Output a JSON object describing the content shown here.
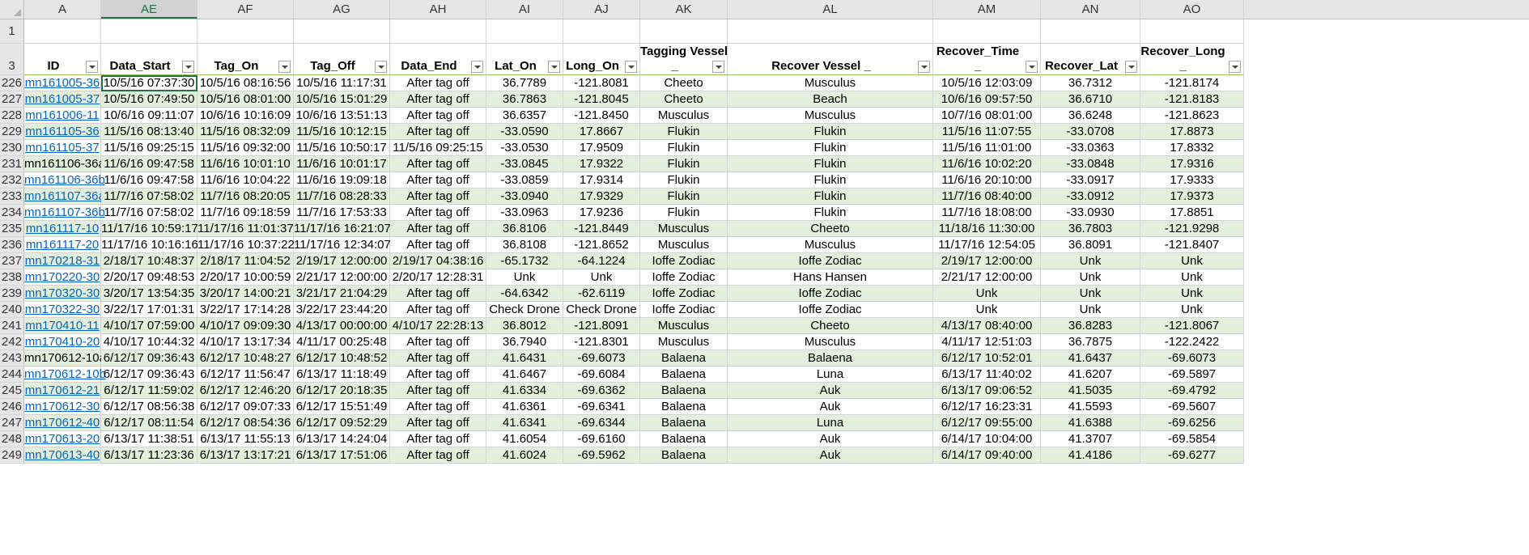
{
  "columns": [
    "A",
    "AE",
    "AF",
    "AG",
    "AH",
    "AI",
    "AJ",
    "AK",
    "AL",
    "AM",
    "AN",
    "AO"
  ],
  "active_column": "AE",
  "blank_row_number": "1",
  "header_row": {
    "row_number": "3",
    "cells": [
      {
        "line1": "",
        "line2": "ID"
      },
      {
        "line1": "",
        "line2": "Data_Start"
      },
      {
        "line1": "",
        "line2": "Tag_On"
      },
      {
        "line1": "",
        "line2": "Tag_Off"
      },
      {
        "line1": "",
        "line2": "Data_End"
      },
      {
        "line1": "",
        "line2": "Lat_On"
      },
      {
        "line1": "",
        "line2": "Long_On"
      },
      {
        "line1": "Tagging Vessel",
        "line2": "_"
      },
      {
        "line1": "",
        "line2": "Recover Vessel   _"
      },
      {
        "line1": "Recover_Time",
        "line2": "_"
      },
      {
        "line1": "",
        "line2": "Recover_Lat"
      },
      {
        "line1": "Recover_Long",
        "line2": "_"
      }
    ]
  },
  "rows": [
    {
      "num": "226",
      "link": true,
      "cells": [
        "mn161005-36",
        "10/5/16 07:37:30",
        "10/5/16 08:16:56",
        "10/5/16 11:17:31",
        "After tag off",
        "36.7789",
        "-121.8081",
        "Cheeto",
        "Musculus",
        "10/5/16 12:03:09",
        "36.7312",
        "-121.8174"
      ]
    },
    {
      "num": "227",
      "link": true,
      "cells": [
        "mn161005-37",
        "10/5/16 07:49:50",
        "10/5/16 08:01:00",
        "10/5/16 15:01:29",
        "After tag off",
        "36.7863",
        "-121.8045",
        "Cheeto",
        "Beach",
        "10/6/16 09:57:50",
        "36.6710",
        "-121.8183"
      ]
    },
    {
      "num": "228",
      "link": true,
      "cells": [
        "mn161006-11",
        "10/6/16 09:11:07",
        "10/6/16 10:16:09",
        "10/6/16 13:51:13",
        "After tag off",
        "36.6357",
        "-121.8450",
        "Musculus",
        "Musculus",
        "10/7/16 08:01:00",
        "36.6248",
        "-121.8623"
      ]
    },
    {
      "num": "229",
      "link": true,
      "cells": [
        "mn161105-36",
        "11/5/16 08:13:40",
        "11/5/16 08:32:09",
        "11/5/16 10:12:15",
        "After tag off",
        "-33.0590",
        "17.8667",
        "Flukin",
        "Flukin",
        "11/5/16 11:07:55",
        "-33.0708",
        "17.8873"
      ]
    },
    {
      "num": "230",
      "link": true,
      "cells": [
        "mn161105-37",
        "11/5/16 09:25:15",
        "11/5/16 09:32:00",
        "11/5/16 10:50:17",
        "11/5/16 09:25:15",
        "-33.0530",
        "17.9509",
        "Flukin",
        "Flukin",
        "11/5/16 11:01:00",
        "-33.0363",
        "17.8332"
      ]
    },
    {
      "num": "231",
      "link": false,
      "cells": [
        "mn161106-36a",
        "11/6/16 09:47:58",
        "11/6/16 10:01:10",
        "11/6/16 10:01:17",
        "After tag off",
        "-33.0845",
        "17.9322",
        "Flukin",
        "Flukin",
        "11/6/16 10:02:20",
        "-33.0848",
        "17.9316"
      ]
    },
    {
      "num": "232",
      "link": true,
      "cells": [
        "mn161106-36b",
        "11/6/16 09:47:58",
        "11/6/16 10:04:22",
        "11/6/16 19:09:18",
        "After tag off",
        "-33.0859",
        "17.9314",
        "Flukin",
        "Flukin",
        "11/6/16 20:10:00",
        "-33.0917",
        "17.9333"
      ]
    },
    {
      "num": "233",
      "link": true,
      "cells": [
        "mn161107-36a",
        "11/7/16 07:58:02",
        "11/7/16 08:20:05",
        "11/7/16 08:28:33",
        "After tag off",
        "-33.0940",
        "17.9329",
        "Flukin",
        "Flukin",
        "11/7/16 08:40:00",
        "-33.0912",
        "17.9373"
      ]
    },
    {
      "num": "234",
      "link": true,
      "cells": [
        "mn161107-36b",
        "11/7/16 07:58:02",
        "11/7/16 09:18:59",
        "11/7/16 17:53:33",
        "After tag off",
        "-33.0963",
        "17.9236",
        "Flukin",
        "Flukin",
        "11/7/16 18:08:00",
        "-33.0930",
        "17.8851"
      ]
    },
    {
      "num": "235",
      "link": true,
      "cells": [
        "mn161117-10",
        "11/17/16 10:59:17",
        "11/17/16 11:01:37",
        "11/17/16 16:21:07",
        "After tag off",
        "36.8106",
        "-121.8449",
        "Musculus",
        "Cheeto",
        "11/18/16 11:30:00",
        "36.7803",
        "-121.9298"
      ]
    },
    {
      "num": "236",
      "link": true,
      "cells": [
        "mn161117-20",
        "11/17/16 10:16:16",
        "11/17/16 10:37:22",
        "11/17/16 12:34:07",
        "After tag off",
        "36.8108",
        "-121.8652",
        "Musculus",
        "Musculus",
        "11/17/16 12:54:05",
        "36.8091",
        "-121.8407"
      ]
    },
    {
      "num": "237",
      "link": true,
      "cells": [
        "mn170218-31",
        "2/18/17 10:48:37",
        "2/18/17 11:04:52",
        "2/19/17 12:00:00",
        "2/19/17 04:38:16",
        "-65.1732",
        "-64.1224",
        "Ioffe Zodiac",
        "Ioffe Zodiac",
        "2/19/17 12:00:00",
        "Unk",
        "Unk"
      ]
    },
    {
      "num": "238",
      "link": true,
      "cells": [
        "mn170220-30",
        "2/20/17 09:48:53",
        "2/20/17 10:00:59",
        "2/21/17 12:00:00",
        "2/20/17 12:28:31",
        "Unk",
        "Unk",
        "Ioffe Zodiac",
        "Hans Hansen",
        "2/21/17 12:00:00",
        "Unk",
        "Unk"
      ]
    },
    {
      "num": "239",
      "link": true,
      "cells": [
        "mn170320-30",
        "3/20/17 13:54:35",
        "3/20/17 14:00:21",
        "3/21/17 21:04:29",
        "After tag off",
        "-64.6342",
        "-62.6119",
        "Ioffe Zodiac",
        "Ioffe Zodiac",
        "Unk",
        "Unk",
        "Unk"
      ]
    },
    {
      "num": "240",
      "link": true,
      "cells": [
        "mn170322-30",
        "3/22/17 17:01:31",
        "3/22/17 17:14:28",
        "3/22/17 23:44:20",
        "After tag off",
        "Check Drone",
        "Check Drone",
        "Ioffe Zodiac",
        "Ioffe Zodiac",
        "Unk",
        "Unk",
        "Unk"
      ]
    },
    {
      "num": "241",
      "link": true,
      "cells": [
        "mn170410-11",
        "4/10/17 07:59:00",
        "4/10/17 09:09:30",
        "4/13/17 00:00:00",
        "4/10/17 22:28:13",
        "36.8012",
        "-121.8091",
        "Musculus",
        "Cheeto",
        "4/13/17 08:40:00",
        "36.8283",
        "-121.8067"
      ]
    },
    {
      "num": "242",
      "link": true,
      "cells": [
        "mn170410-20",
        "4/10/17 10:44:32",
        "4/10/17 13:17:34",
        "4/11/17 00:25:48",
        "After tag off",
        "36.7940",
        "-121.8301",
        "Musculus",
        "Musculus",
        "4/11/17 12:51:03",
        "36.7875",
        "-122.2422"
      ]
    },
    {
      "num": "243",
      "link": false,
      "cells": [
        "mn170612-10a",
        "6/12/17 09:36:43",
        "6/12/17 10:48:27",
        "6/12/17 10:48:52",
        "After tag off",
        "41.6431",
        "-69.6073",
        "Balaena",
        "Balaena",
        "6/12/17 10:52:01",
        "41.6437",
        "-69.6073"
      ]
    },
    {
      "num": "244",
      "link": true,
      "cells": [
        "mn170612-10b",
        "6/12/17 09:36:43",
        "6/12/17 11:56:47",
        "6/13/17 11:18:49",
        "After tag off",
        "41.6467",
        "-69.6084",
        "Balaena",
        "Luna",
        "6/13/17 11:40:02",
        "41.6207",
        "-69.5897"
      ]
    },
    {
      "num": "245",
      "link": true,
      "cells": [
        "mn170612-21",
        "6/12/17 11:59:02",
        "6/12/17 12:46:20",
        "6/12/17 20:18:35",
        "After tag off",
        "41.6334",
        "-69.6362",
        "Balaena",
        "Auk",
        "6/13/17 09:06:52",
        "41.5035",
        "-69.4792"
      ]
    },
    {
      "num": "246",
      "link": true,
      "cells": [
        "mn170612-30",
        "6/12/17 08:56:38",
        "6/12/17 09:07:33",
        "6/12/17 15:51:49",
        "After tag off",
        "41.6361",
        "-69.6341",
        "Balaena",
        "Auk",
        "6/12/17 16:23:31",
        "41.5593",
        "-69.5607"
      ]
    },
    {
      "num": "247",
      "link": true,
      "cells": [
        "mn170612-40",
        "6/12/17 08:11:54",
        "6/12/17 08:54:36",
        "6/12/17 09:52:29",
        "After tag off",
        "41.6341",
        "-69.6344",
        "Balaena",
        "Luna",
        "6/12/17 09:55:00",
        "41.6388",
        "-69.6256"
      ]
    },
    {
      "num": "248",
      "link": true,
      "cells": [
        "mn170613-20",
        "6/13/17 11:38:51",
        "6/13/17 11:55:13",
        "6/13/17 14:24:04",
        "After tag off",
        "41.6054",
        "-69.6160",
        "Balaena",
        "Auk",
        "6/14/17 10:04:00",
        "41.3707",
        "-69.5854"
      ]
    },
    {
      "num": "249",
      "link": true,
      "cells": [
        "mn170613-40",
        "6/13/17 11:23:36",
        "6/13/17 13:17:21",
        "6/13/17 17:51:06",
        "After tag off",
        "41.6024",
        "-69.5962",
        "Balaena",
        "Auk",
        "6/14/17 09:40:00",
        "41.4186",
        "-69.6277"
      ]
    }
  ]
}
